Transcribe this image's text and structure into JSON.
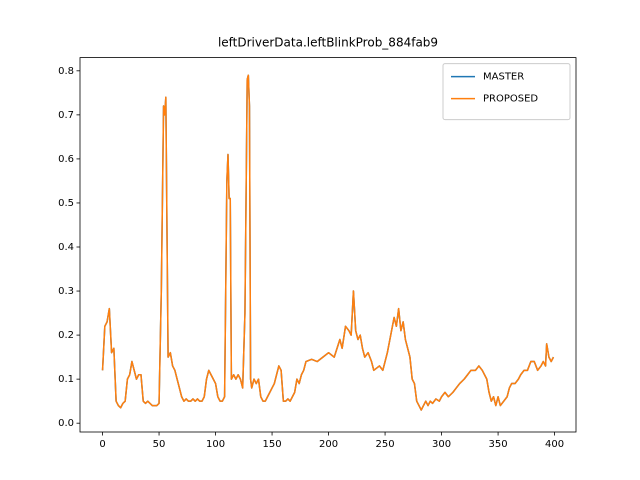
{
  "chart_data": {
    "type": "line",
    "title": "leftDriverData.leftBlinkProb_884fab9",
    "x": [
      0,
      2,
      4,
      6,
      8,
      10,
      12,
      14,
      16,
      18,
      20,
      22,
      24,
      26,
      28,
      30,
      32,
      34,
      36,
      38,
      40,
      42,
      44,
      46,
      48,
      50,
      52,
      54,
      55,
      56,
      58,
      60,
      62,
      64,
      66,
      68,
      70,
      72,
      74,
      76,
      78,
      80,
      82,
      84,
      86,
      88,
      90,
      92,
      94,
      96,
      98,
      100,
      102,
      104,
      106,
      108,
      110,
      111,
      112,
      113,
      114,
      116,
      118,
      120,
      122,
      124,
      126,
      128,
      129,
      130,
      131,
      132,
      134,
      136,
      138,
      140,
      142,
      144,
      146,
      148,
      150,
      152,
      154,
      156,
      158,
      160,
      162,
      164,
      166,
      168,
      170,
      172,
      174,
      176,
      178,
      180,
      185,
      190,
      195,
      200,
      205,
      210,
      212,
      215,
      218,
      220,
      222,
      224,
      226,
      228,
      230,
      232,
      235,
      238,
      240,
      245,
      248,
      250,
      252,
      255,
      258,
      260,
      262,
      264,
      266,
      268,
      270,
      272,
      274,
      276,
      278,
      280,
      282,
      284,
      286,
      288,
      290,
      292,
      295,
      298,
      300,
      303,
      306,
      310,
      313,
      316,
      320,
      323,
      326,
      330,
      333,
      336,
      340,
      342,
      344,
      346,
      348,
      350,
      352,
      355,
      358,
      360,
      362,
      365,
      368,
      370,
      373,
      376,
      379,
      382,
      385,
      388,
      390,
      392,
      393,
      395,
      397,
      399
    ],
    "series": [
      {
        "name": "MASTER",
        "color": "#1f77b4",
        "values": [
          0.12,
          0.22,
          0.23,
          0.26,
          0.16,
          0.17,
          0.05,
          0.04,
          0.035,
          0.045,
          0.05,
          0.1,
          0.11,
          0.14,
          0.12,
          0.1,
          0.11,
          0.11,
          0.05,
          0.045,
          0.05,
          0.045,
          0.04,
          0.04,
          0.04,
          0.045,
          0.3,
          0.72,
          0.7,
          0.74,
          0.15,
          0.16,
          0.13,
          0.12,
          0.1,
          0.08,
          0.06,
          0.05,
          0.055,
          0.05,
          0.05,
          0.055,
          0.05,
          0.055,
          0.05,
          0.05,
          0.06,
          0.1,
          0.12,
          0.11,
          0.1,
          0.09,
          0.06,
          0.05,
          0.05,
          0.06,
          0.55,
          0.61,
          0.51,
          0.51,
          0.1,
          0.11,
          0.1,
          0.11,
          0.1,
          0.08,
          0.25,
          0.78,
          0.79,
          0.72,
          0.1,
          0.08,
          0.1,
          0.09,
          0.1,
          0.06,
          0.05,
          0.05,
          0.06,
          0.07,
          0.08,
          0.09,
          0.11,
          0.13,
          0.12,
          0.05,
          0.05,
          0.055,
          0.05,
          0.06,
          0.07,
          0.1,
          0.09,
          0.11,
          0.12,
          0.14,
          0.145,
          0.14,
          0.15,
          0.16,
          0.15,
          0.19,
          0.17,
          0.22,
          0.21,
          0.2,
          0.3,
          0.21,
          0.19,
          0.2,
          0.17,
          0.15,
          0.16,
          0.14,
          0.12,
          0.13,
          0.12,
          0.14,
          0.16,
          0.2,
          0.24,
          0.22,
          0.26,
          0.21,
          0.23,
          0.19,
          0.17,
          0.15,
          0.1,
          0.09,
          0.05,
          0.04,
          0.03,
          0.04,
          0.05,
          0.04,
          0.05,
          0.045,
          0.055,
          0.05,
          0.06,
          0.07,
          0.06,
          0.07,
          0.08,
          0.09,
          0.1,
          0.11,
          0.12,
          0.12,
          0.13,
          0.12,
          0.1,
          0.07,
          0.05,
          0.06,
          0.04,
          0.06,
          0.04,
          0.05,
          0.06,
          0.08,
          0.09,
          0.09,
          0.1,
          0.11,
          0.12,
          0.12,
          0.14,
          0.14,
          0.12,
          0.13,
          0.14,
          0.13,
          0.18,
          0.15,
          0.14,
          0.15
        ]
      },
      {
        "name": "PROPOSED",
        "color": "#ff7f0e",
        "values": [
          0.12,
          0.22,
          0.23,
          0.26,
          0.16,
          0.17,
          0.05,
          0.04,
          0.035,
          0.045,
          0.05,
          0.1,
          0.11,
          0.14,
          0.12,
          0.1,
          0.11,
          0.11,
          0.05,
          0.045,
          0.05,
          0.045,
          0.04,
          0.04,
          0.04,
          0.045,
          0.3,
          0.72,
          0.7,
          0.74,
          0.15,
          0.16,
          0.13,
          0.12,
          0.1,
          0.08,
          0.06,
          0.05,
          0.055,
          0.05,
          0.05,
          0.055,
          0.05,
          0.055,
          0.05,
          0.05,
          0.06,
          0.1,
          0.12,
          0.11,
          0.1,
          0.09,
          0.06,
          0.05,
          0.05,
          0.06,
          0.55,
          0.61,
          0.51,
          0.51,
          0.1,
          0.11,
          0.1,
          0.11,
          0.1,
          0.08,
          0.25,
          0.78,
          0.79,
          0.72,
          0.1,
          0.08,
          0.1,
          0.09,
          0.1,
          0.06,
          0.05,
          0.05,
          0.06,
          0.07,
          0.08,
          0.09,
          0.11,
          0.13,
          0.12,
          0.05,
          0.05,
          0.055,
          0.05,
          0.06,
          0.07,
          0.1,
          0.09,
          0.11,
          0.12,
          0.14,
          0.145,
          0.14,
          0.15,
          0.16,
          0.15,
          0.19,
          0.17,
          0.22,
          0.21,
          0.2,
          0.3,
          0.21,
          0.19,
          0.2,
          0.17,
          0.15,
          0.16,
          0.14,
          0.12,
          0.13,
          0.12,
          0.14,
          0.16,
          0.2,
          0.24,
          0.22,
          0.26,
          0.21,
          0.23,
          0.19,
          0.17,
          0.15,
          0.1,
          0.09,
          0.05,
          0.04,
          0.03,
          0.04,
          0.05,
          0.04,
          0.05,
          0.045,
          0.055,
          0.05,
          0.06,
          0.07,
          0.06,
          0.07,
          0.08,
          0.09,
          0.1,
          0.11,
          0.12,
          0.12,
          0.13,
          0.12,
          0.1,
          0.07,
          0.05,
          0.06,
          0.04,
          0.06,
          0.04,
          0.05,
          0.06,
          0.08,
          0.09,
          0.09,
          0.1,
          0.11,
          0.12,
          0.12,
          0.14,
          0.14,
          0.12,
          0.13,
          0.14,
          0.13,
          0.18,
          0.15,
          0.14,
          0.15
        ]
      }
    ],
    "xlim": [
      -19.95,
      418.95
    ],
    "xticks": [
      0,
      50,
      100,
      150,
      200,
      250,
      300,
      350,
      400
    ],
    "ylim": [
      -0.02,
      0.83
    ],
    "yticks": [
      {
        "value": 0,
        "label": "0.0"
      },
      0.1,
      0.2,
      0.3,
      0.4,
      0.5,
      0.6,
      0.7,
      0.8
    ],
    "legend": "upper right"
  }
}
